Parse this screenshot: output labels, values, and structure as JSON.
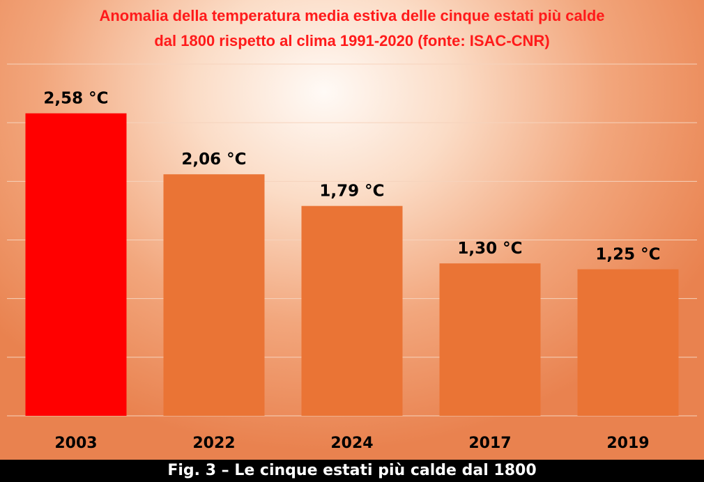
{
  "chart_data": {
    "type": "bar",
    "title_line1": "Anomalia della temperatura media estiva delle cinque estati più calde",
    "title_line2": "dal 1800 rispetto al clima 1991-2020 (fonte: ISAC-CNR)",
    "categories": [
      "2003",
      "2022",
      "2024",
      "2017",
      "2019"
    ],
    "values": [
      2.58,
      2.06,
      1.79,
      1.3,
      1.25
    ],
    "data_labels": [
      "2,58 °C",
      "2,06 °C",
      "1,79 °C",
      "1,30 °C",
      "1,25 °C"
    ],
    "xlabel": "",
    "ylabel": "",
    "ylim": [
      0,
      3.0
    ],
    "grid": true,
    "legend": "none",
    "colors": {
      "highlight": "#ff0000",
      "default": "#ea7435",
      "grid": "#f6d3bd",
      "label_text": "#000000"
    },
    "highlight_index": 0
  },
  "caption": "Fig. 3 – Le cinque estati più calde dal 1800"
}
